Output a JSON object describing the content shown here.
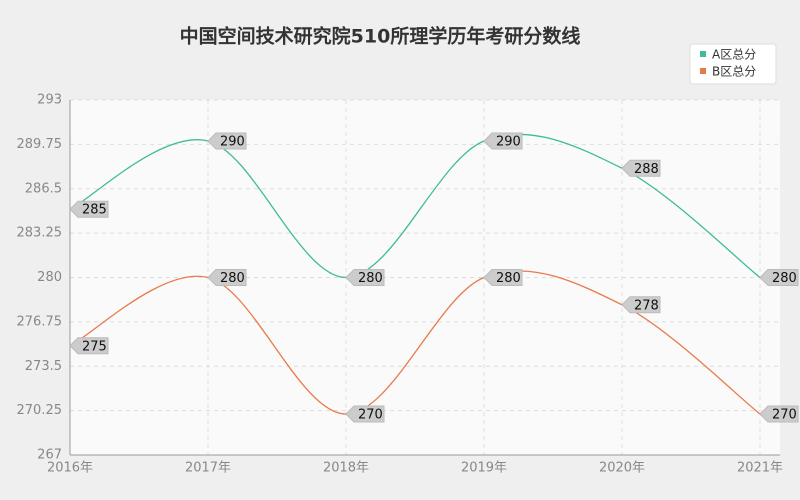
{
  "chart_data": {
    "type": "line",
    "title": "中国空间技术研究院510所理学历年考研分数线",
    "categories": [
      "2016年",
      "2017年",
      "2018年",
      "2019年",
      "2020年",
      "2021年"
    ],
    "series": [
      {
        "name": "A区总分",
        "color": "#3dbb9b",
        "values": [
          285,
          290,
          280,
          290,
          288,
          280
        ]
      },
      {
        "name": "B区总分",
        "color": "#e8794a",
        "values": [
          275,
          280,
          270,
          280,
          278,
          270
        ]
      }
    ],
    "ylim": [
      267,
      293
    ],
    "yticks": [
      267,
      270.25,
      273.5,
      276.75,
      280,
      283.25,
      286.5,
      289.75,
      293
    ],
    "grid": true,
    "legend": "top-right"
  }
}
